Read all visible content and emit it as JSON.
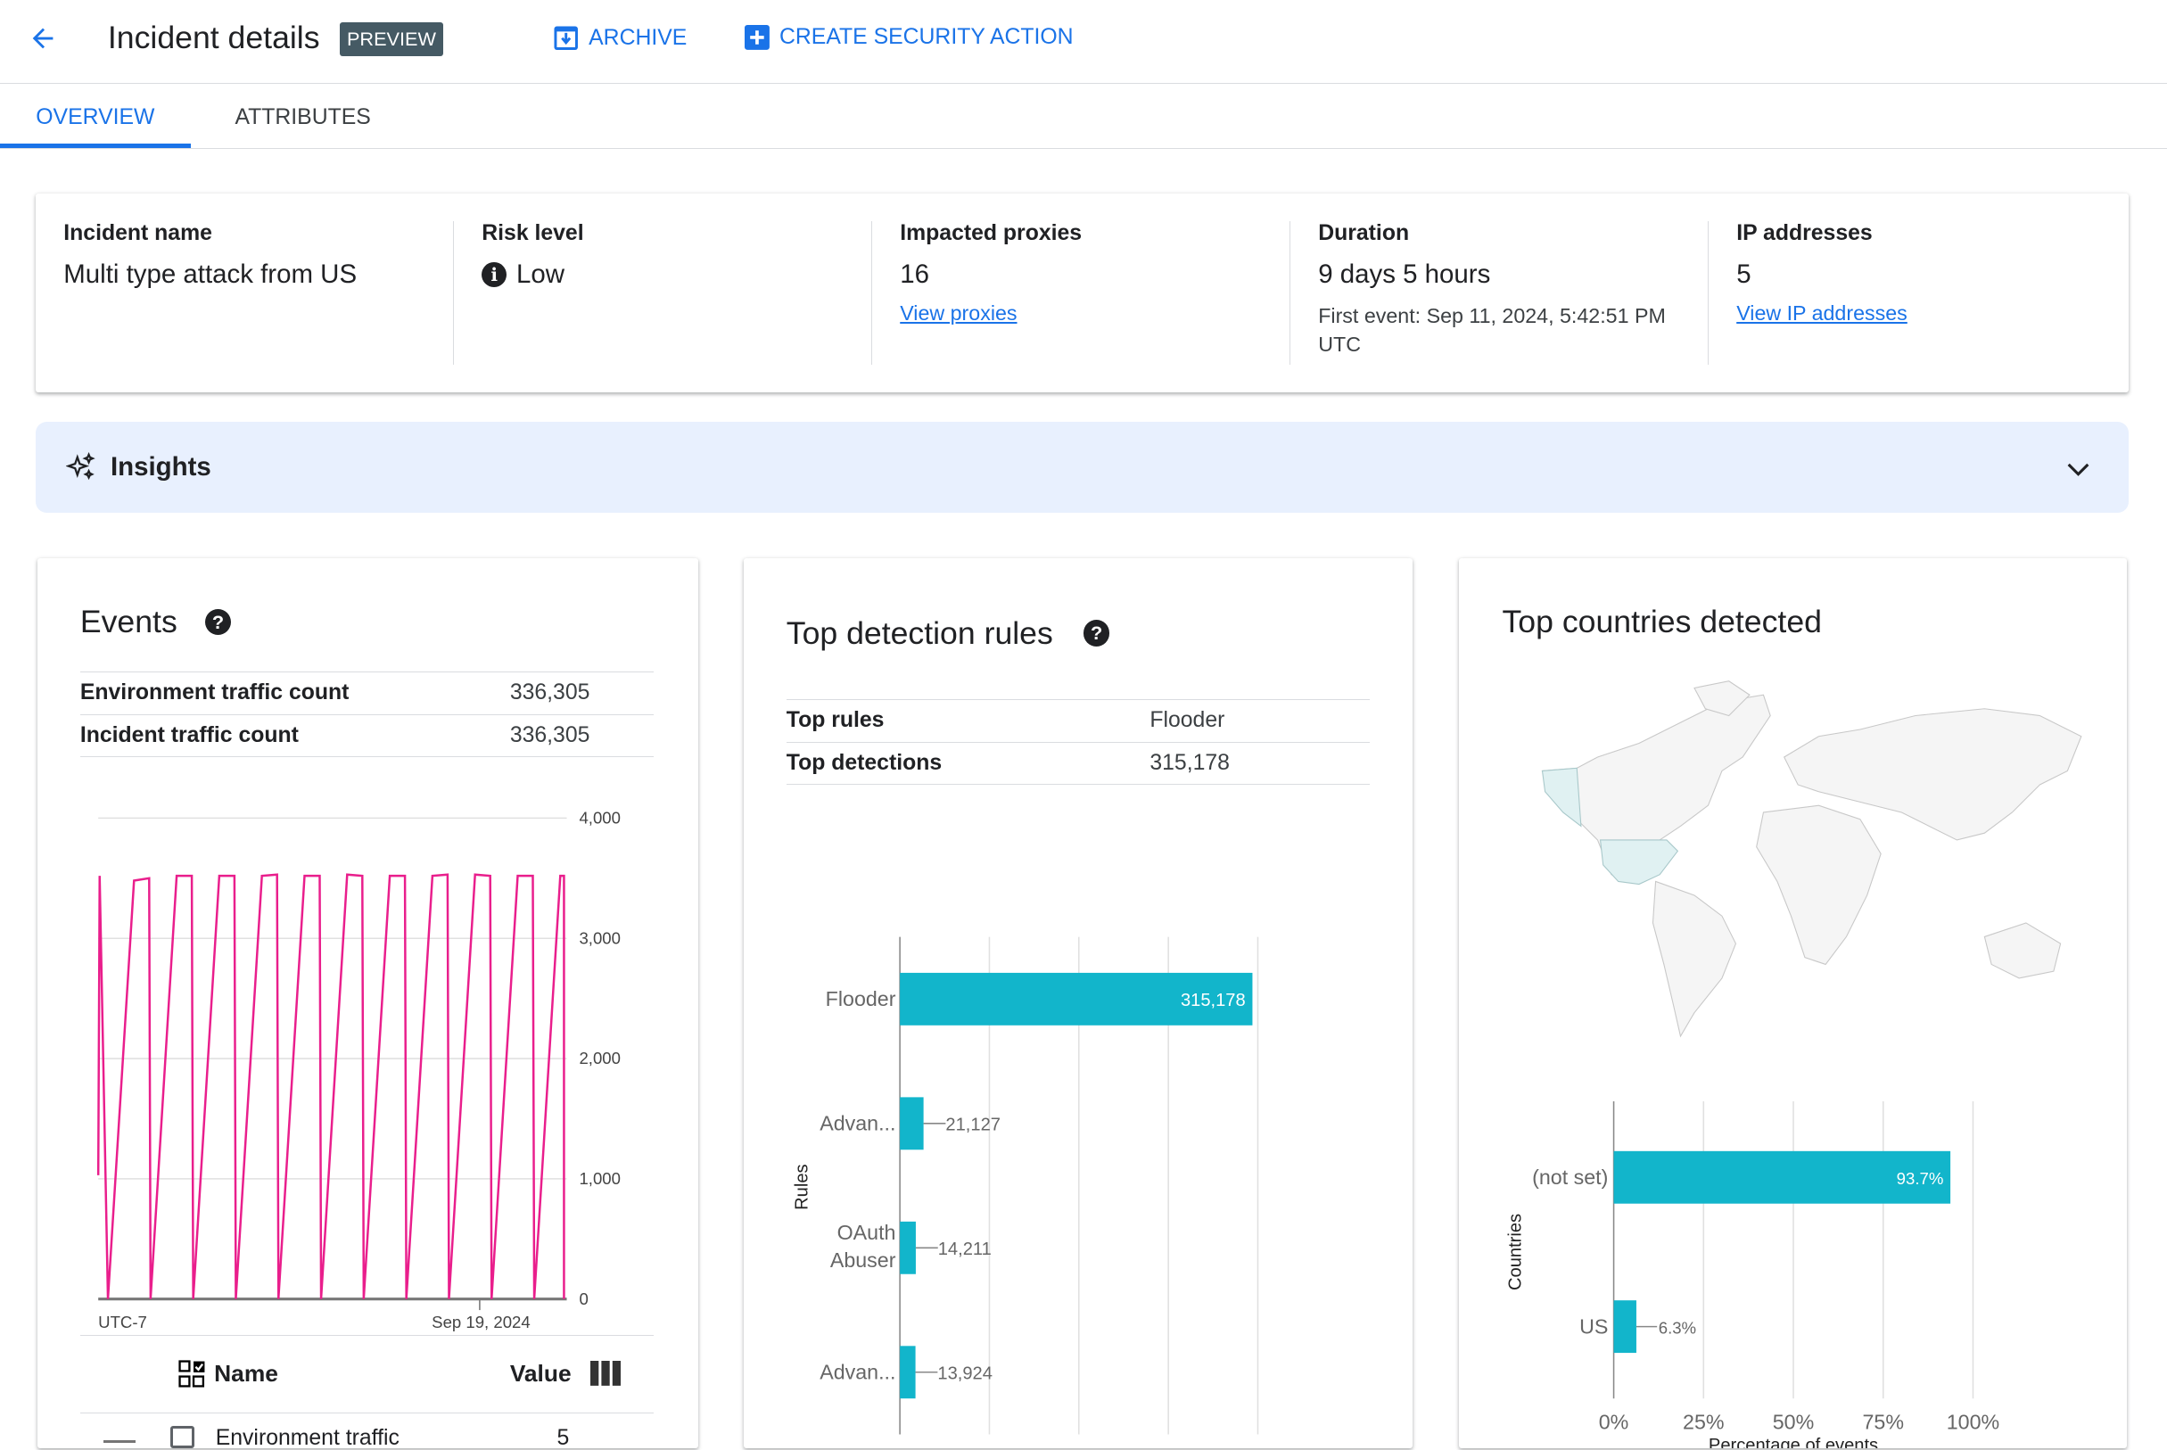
{
  "header": {
    "title": "Incident details",
    "badge": "PREVIEW",
    "archive_label": "ARCHIVE",
    "create_label": "CREATE SECURITY ACTION",
    "back_icon": "arrow-left-icon",
    "accent": "#1a73e8"
  },
  "tabs": [
    {
      "label": "OVERVIEW",
      "active": true
    },
    {
      "label": "ATTRIBUTES",
      "active": false
    }
  ],
  "summary": {
    "incident_name": {
      "label": "Incident name",
      "value": "Multi type attack from US"
    },
    "risk_level": {
      "label": "Risk level",
      "value": "Low",
      "icon": "info-icon"
    },
    "impacted_proxies": {
      "label": "Impacted proxies",
      "value": "16",
      "link": "View proxies"
    },
    "duration": {
      "label": "Duration",
      "value": "9 days 5 hours",
      "detail": "First event: Sep 11, 2024, 5:42:51 PM UTC"
    },
    "ip_addresses": {
      "label": "IP addresses",
      "value": "5",
      "link": "View IP addresses"
    }
  },
  "insights": {
    "label": "Insights",
    "icon": "sparkle-icon",
    "expanded": false
  },
  "events": {
    "title": "Events",
    "rows": [
      {
        "k": "Environment traffic count",
        "v": "336,305"
      },
      {
        "k": "Incident traffic count",
        "v": "336,305"
      }
    ],
    "legend": {
      "name_header": "Name",
      "value_header": "Value",
      "rows": [
        {
          "name": "Environment traffic",
          "value": "5"
        }
      ]
    }
  },
  "rules": {
    "title": "Top detection rules",
    "rows": [
      {
        "k": "Top rules",
        "v": "Flooder"
      },
      {
        "k": "Top detections",
        "v": "315,178"
      }
    ]
  },
  "countries": {
    "title": "Top countries detected"
  },
  "chart_data": [
    {
      "type": "line",
      "name": "events-timeline",
      "xlabel": "UTC-7",
      "x_tick_labels": [
        "Sep 19, 2024"
      ],
      "ylim": [
        0,
        4000
      ],
      "y_ticks": [
        "0",
        "1,000",
        "2,000",
        "3,000",
        "4,000"
      ],
      "grid": true,
      "color": "#e91e8c",
      "y": [
        1030,
        3520,
        0,
        3480,
        3500,
        0,
        3520,
        3520,
        0,
        3520,
        3520,
        0,
        3520,
        3530,
        0,
        3520,
        3520,
        0,
        3530,
        3520,
        0,
        3520,
        3520,
        0,
        3520,
        3530,
        0,
        3530,
        3520,
        0,
        3520,
        3520,
        0,
        3520,
        3520,
        0
      ]
    },
    {
      "type": "bar",
      "orientation": "horizontal",
      "ylabel": "Rules",
      "categories": [
        "Flooder",
        "Advan...",
        "OAuth Abuser",
        "Advan..."
      ],
      "values": [
        315178,
        21127,
        14211,
        13924
      ],
      "labels": [
        "315,178",
        "21,127",
        "14,211",
        "13,924"
      ],
      "xlim": [
        0,
        320000
      ],
      "grid": true,
      "color": "#12b5cb"
    },
    {
      "type": "bar",
      "orientation": "horizontal",
      "ylabel": "Countries",
      "xlabel": "Percentage of events",
      "categories": [
        "(not set)",
        "US"
      ],
      "values": [
        93.7,
        6.3
      ],
      "labels": [
        "93.7%",
        "6.3%"
      ],
      "x_ticks": [
        "0%",
        "25%",
        "50%",
        "75%",
        "100%"
      ],
      "xlim": [
        0,
        100
      ],
      "grid": true,
      "color": "#12b5cb"
    }
  ]
}
